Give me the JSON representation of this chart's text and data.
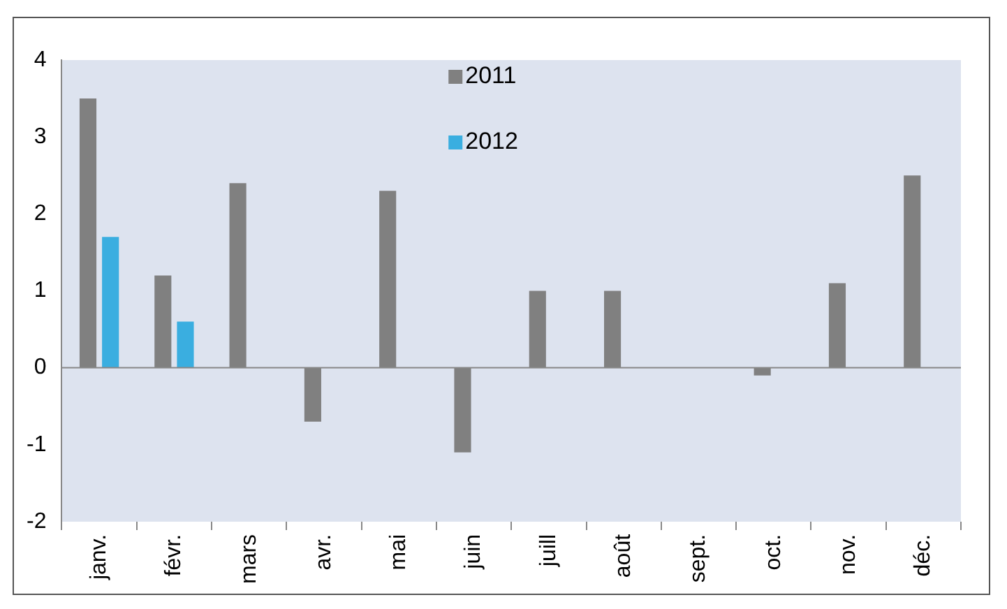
{
  "chart_data": {
    "type": "bar",
    "categories": [
      "janv.",
      "févr.",
      "mars",
      "avr.",
      "mai",
      "juin",
      "juill",
      "août",
      "sept.",
      "oct.",
      "nov.",
      "déc."
    ],
    "series": [
      {
        "name": "2011",
        "color": "#808080",
        "values": [
          3.5,
          1.2,
          2.4,
          -0.7,
          2.3,
          -1.1,
          1.0,
          1.0,
          0.0,
          -0.1,
          1.1,
          2.5
        ]
      },
      {
        "name": "2012",
        "color": "#3aaee0",
        "values": [
          1.7,
          0.6,
          0.0,
          0.0,
          0.0,
          0.0,
          0.0,
          0.0,
          0.0,
          0.0,
          0.0,
          0.0
        ]
      }
    ],
    "ylim": [
      -2,
      4
    ],
    "yticks": [
      -2,
      -1,
      0,
      1,
      2,
      3,
      4
    ],
    "grid": false,
    "legend": "top",
    "ref_lines": [
      {
        "axis": "y",
        "value": 0,
        "color": "#888888"
      }
    ]
  }
}
